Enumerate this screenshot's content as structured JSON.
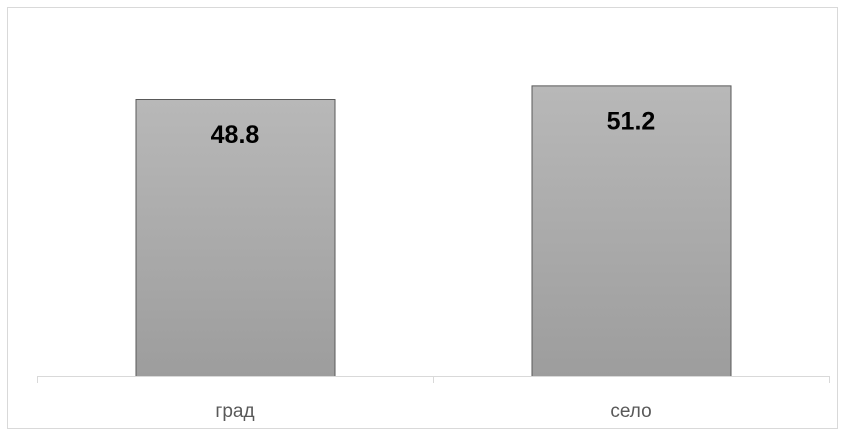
{
  "chart_data": {
    "type": "bar",
    "categories": [
      "град",
      "село"
    ],
    "values": [
      48.8,
      51.2
    ],
    "data_labels": [
      "48.8",
      "51.2"
    ],
    "title": "",
    "xlabel": "",
    "ylabel": "",
    "ylim": [
      0,
      55
    ],
    "grid": false,
    "legend": "none",
    "colors": {
      "bar_fill_top": "#b8b8b8",
      "bar_fill_bottom": "#9d9d9d",
      "bar_stroke": "#595959",
      "axis": "#d9d9d9",
      "category_text": "#595959",
      "label_text": "#000000"
    }
  }
}
